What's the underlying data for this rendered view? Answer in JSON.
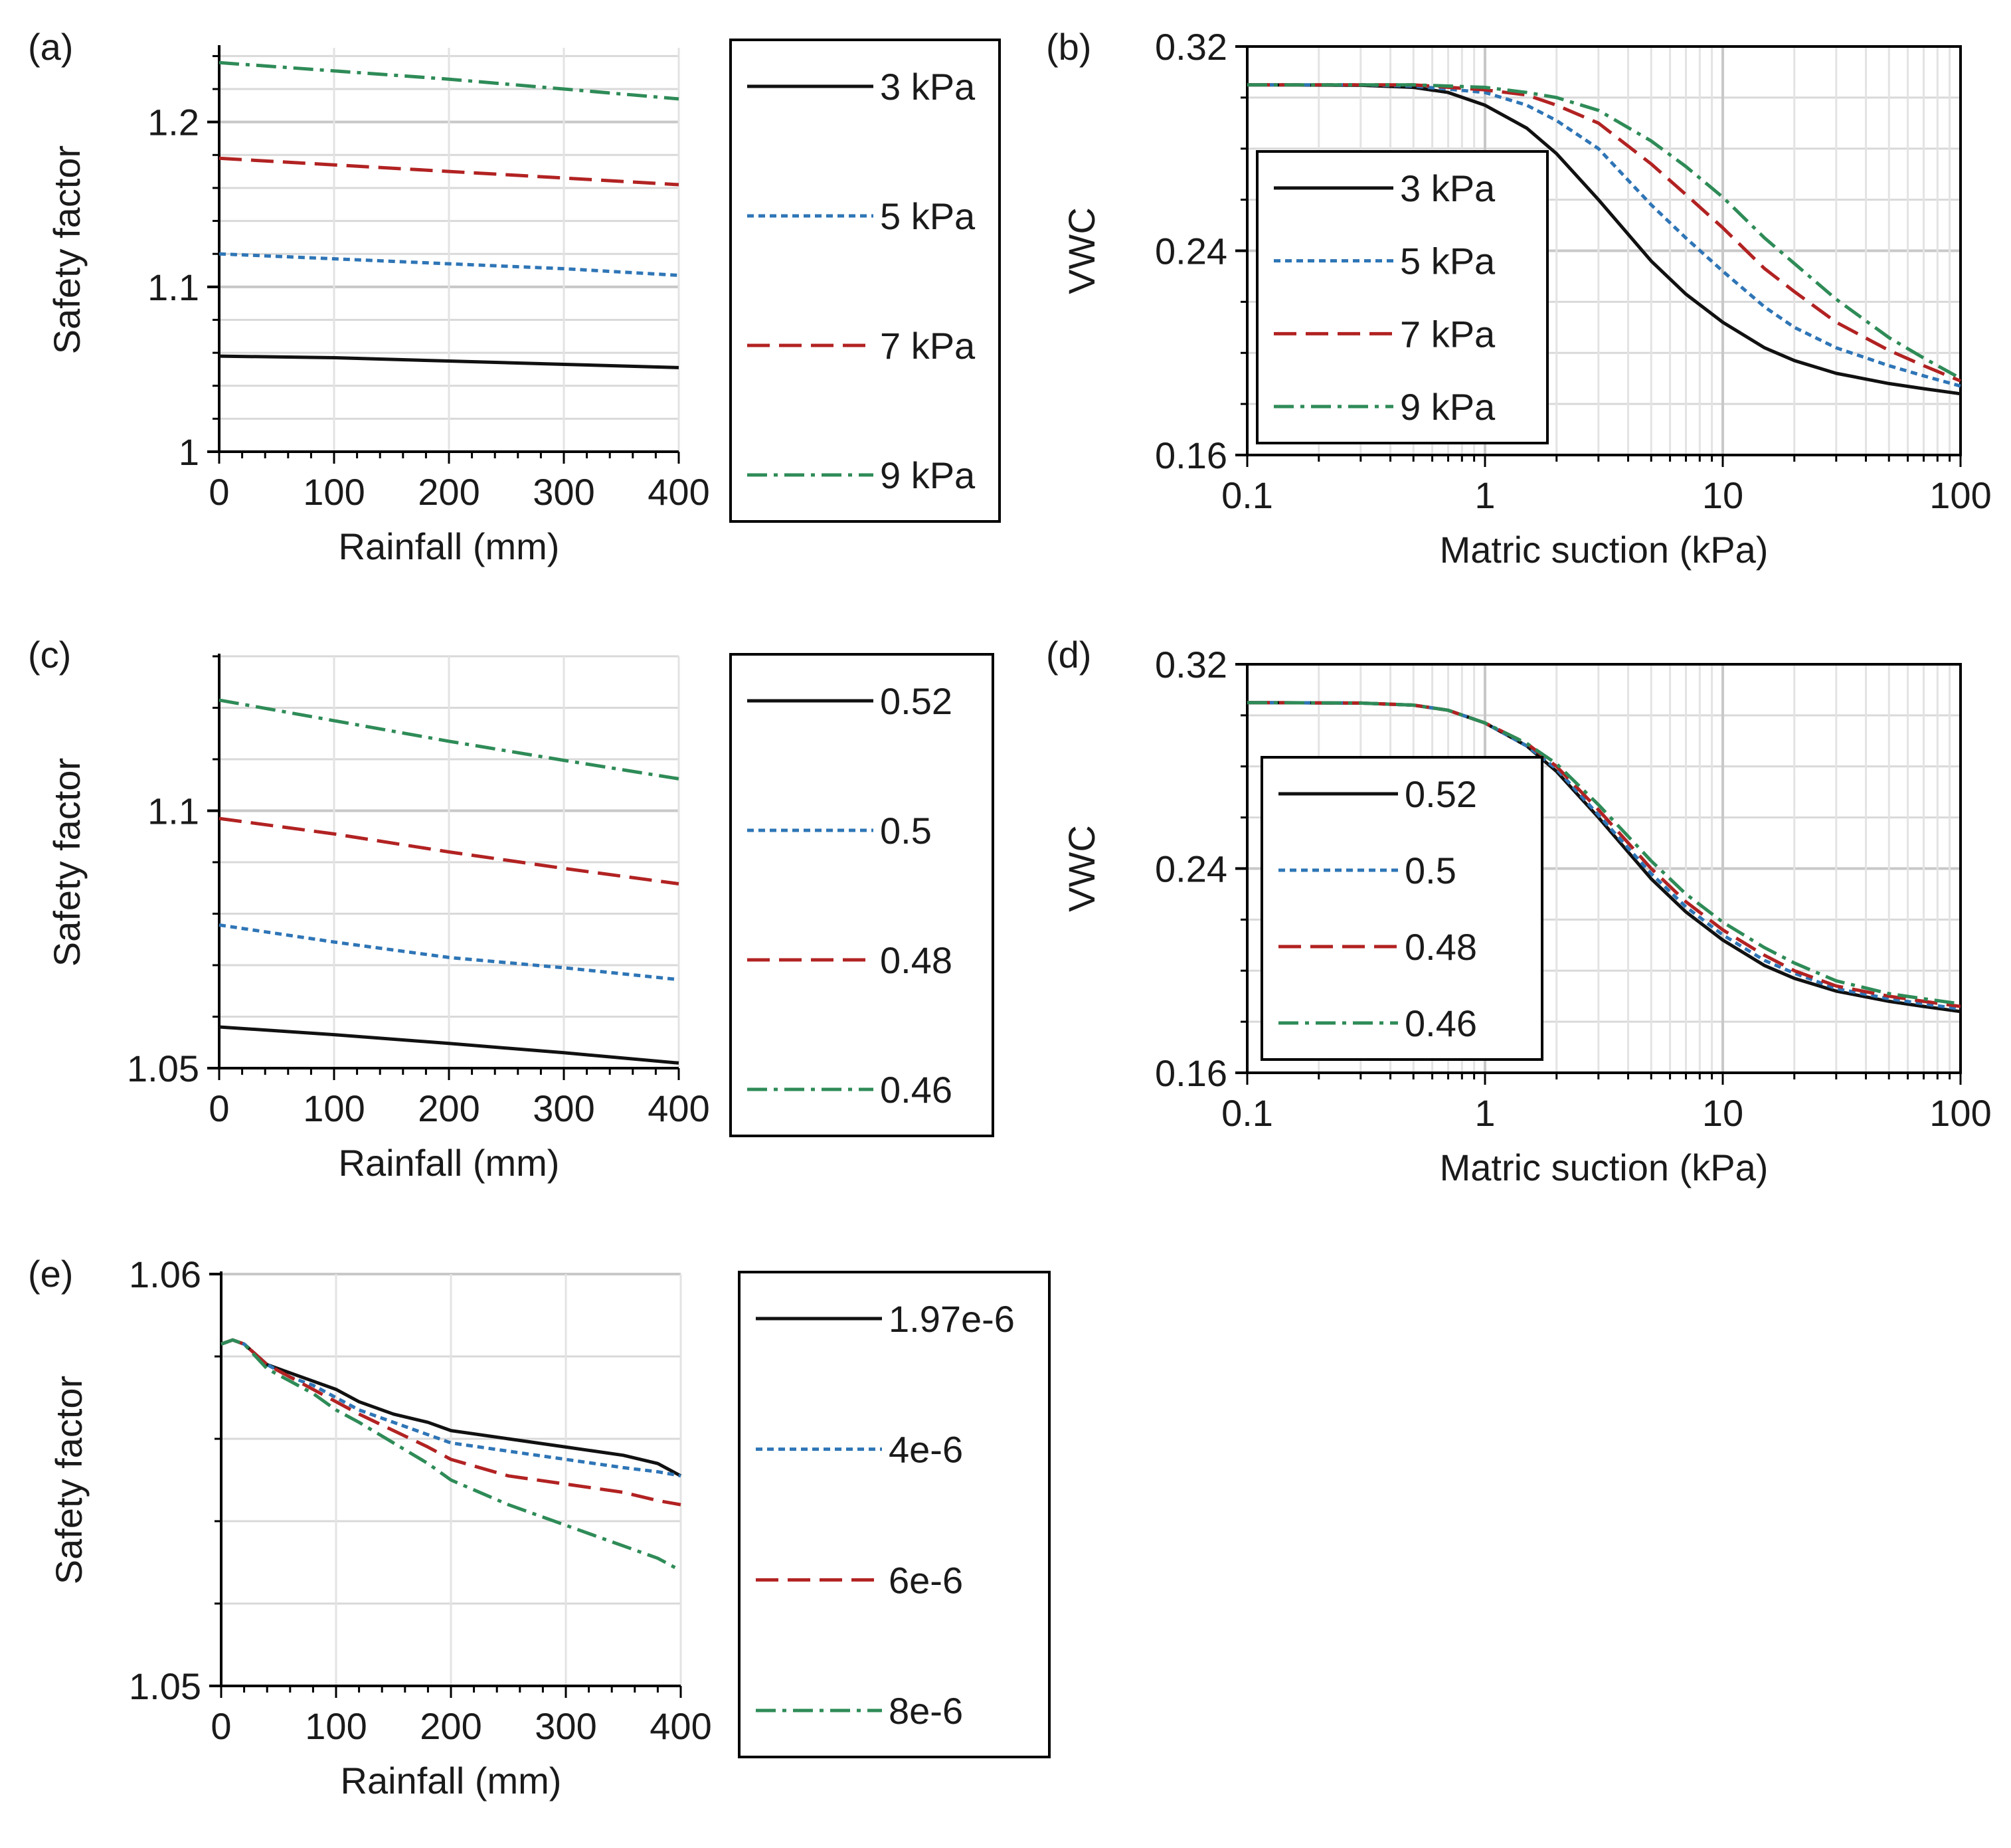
{
  "figure": {
    "colors": {
      "black": "#111111",
      "blue": "#2e75b6",
      "red": "#b22222",
      "green": "#2e8b57",
      "grid": "#d9d9d9",
      "axis": "#000000"
    }
  },
  "chart_data": [
    {
      "panel": "(a)",
      "type": "line",
      "xlabel": "Rainfall (mm)",
      "ylabel": "Safety factor",
      "xlim": [
        0,
        400
      ],
      "ylim": [
        1,
        1.245
      ],
      "xticks": [
        0,
        100,
        200,
        300,
        400
      ],
      "yticks": [
        1,
        1.1,
        1.2
      ],
      "ytick_labels": [
        "1",
        "1.1",
        "1.2"
      ],
      "y_minor_step": 0.02,
      "grid": true,
      "legend_position": "outside-right",
      "series": [
        {
          "name": "3 kPa",
          "style": "solid",
          "color": "#111111",
          "x": [
            0,
            100,
            200,
            300,
            400
          ],
          "y": [
            1.058,
            1.057,
            1.055,
            1.053,
            1.051
          ]
        },
        {
          "name": "5 kPa",
          "style": "dotted",
          "color": "#2e75b6",
          "x": [
            0,
            100,
            200,
            300,
            400
          ],
          "y": [
            1.12,
            1.117,
            1.114,
            1.111,
            1.107
          ]
        },
        {
          "name": "7 kPa",
          "style": "dashed",
          "color": "#b22222",
          "x": [
            0,
            100,
            200,
            300,
            400
          ],
          "y": [
            1.178,
            1.174,
            1.17,
            1.166,
            1.162
          ]
        },
        {
          "name": "9 kPa",
          "style": "dashdot",
          "color": "#2e8b57",
          "x": [
            0,
            100,
            200,
            300,
            400
          ],
          "y": [
            1.236,
            1.231,
            1.226,
            1.22,
            1.214
          ]
        }
      ]
    },
    {
      "panel": "(b)",
      "type": "line",
      "xlabel": "Matric suction (kPa)",
      "ylabel": "VWC",
      "xscale": "log",
      "xlim": [
        0.1,
        100
      ],
      "ylim": [
        0.16,
        0.32
      ],
      "xticks": [
        0.1,
        1,
        10,
        100
      ],
      "xtick_labels": [
        "0.1",
        "1",
        "10",
        "100"
      ],
      "yticks": [
        0.16,
        0.24,
        0.32
      ],
      "ytick_labels": [
        "0.16",
        "0.24",
        "0.32"
      ],
      "y_minor_step": 0.02,
      "grid": true,
      "legend_position": "inside-left",
      "series": [
        {
          "name": "3 kPa",
          "style": "solid",
          "color": "#111111",
          "x": [
            0.1,
            0.3,
            0.5,
            0.7,
            1,
            1.5,
            2,
            3,
            5,
            7,
            10,
            15,
            20,
            30,
            50,
            70,
            100
          ],
          "y": [
            0.305,
            0.3048,
            0.304,
            0.302,
            0.297,
            0.288,
            0.278,
            0.26,
            0.236,
            0.223,
            0.212,
            0.202,
            0.197,
            0.192,
            0.188,
            0.186,
            0.184
          ]
        },
        {
          "name": "5 kPa",
          "style": "dotted",
          "color": "#2e75b6",
          "x": [
            0.1,
            0.3,
            0.5,
            1,
            1.5,
            2,
            3,
            5,
            7,
            10,
            15,
            20,
            30,
            50,
            70,
            100
          ],
          "y": [
            0.305,
            0.305,
            0.3045,
            0.302,
            0.297,
            0.291,
            0.28,
            0.258,
            0.245,
            0.232,
            0.218,
            0.21,
            0.202,
            0.195,
            0.191,
            0.187
          ]
        },
        {
          "name": "7 kPa",
          "style": "dashed",
          "color": "#b22222",
          "x": [
            0.1,
            0.3,
            0.5,
            1,
            1.5,
            2,
            3,
            5,
            7,
            10,
            15,
            20,
            30,
            50,
            70,
            100
          ],
          "y": [
            0.305,
            0.305,
            0.305,
            0.303,
            0.301,
            0.297,
            0.29,
            0.274,
            0.262,
            0.249,
            0.233,
            0.224,
            0.212,
            0.201,
            0.195,
            0.189
          ]
        },
        {
          "name": "9 kPa",
          "style": "dashdot",
          "color": "#2e8b57",
          "x": [
            0.1,
            0.3,
            0.5,
            1,
            1.5,
            2,
            3,
            5,
            7,
            10,
            15,
            20,
            30,
            50,
            70,
            100
          ],
          "y": [
            0.305,
            0.305,
            0.305,
            0.304,
            0.302,
            0.3,
            0.295,
            0.283,
            0.273,
            0.261,
            0.245,
            0.235,
            0.221,
            0.206,
            0.198,
            0.19
          ]
        }
      ]
    },
    {
      "panel": "(c)",
      "type": "line",
      "xlabel": "Rainfall (mm)",
      "ylabel": "Safety factor",
      "xlim": [
        0,
        400
      ],
      "ylim": [
        1.05,
        1.13
      ],
      "xticks": [
        0,
        100,
        200,
        300,
        400
      ],
      "yticks": [
        1.05,
        1.1
      ],
      "ytick_labels": [
        "1.05",
        "1.1"
      ],
      "y_minor_step": 0.01,
      "grid": true,
      "legend_position": "outside-right",
      "series": [
        {
          "name": "0.52",
          "style": "solid",
          "color": "#111111",
          "x": [
            0,
            100,
            200,
            300,
            400
          ],
          "y": [
            1.058,
            1.0565,
            1.0548,
            1.053,
            1.051
          ]
        },
        {
          "name": "0.5",
          "style": "dotted",
          "color": "#2e75b6",
          "x": [
            0,
            100,
            200,
            300,
            400
          ],
          "y": [
            1.0778,
            1.0745,
            1.0715,
            1.0695,
            1.0672
          ]
        },
        {
          "name": "0.48",
          "style": "dashed",
          "color": "#b22222",
          "x": [
            0,
            100,
            200,
            300,
            400
          ],
          "y": [
            1.0985,
            1.0955,
            1.092,
            1.0888,
            1.0858
          ]
        },
        {
          "name": "0.46",
          "style": "dashdot",
          "color": "#2e8b57",
          "x": [
            0,
            100,
            200,
            300,
            400
          ],
          "y": [
            1.1215,
            1.1175,
            1.1135,
            1.1098,
            1.1062
          ]
        }
      ]
    },
    {
      "panel": "(d)",
      "type": "line",
      "xlabel": "Matric suction (kPa)",
      "ylabel": "VWC",
      "xscale": "log",
      "xlim": [
        0.1,
        100
      ],
      "ylim": [
        0.16,
        0.32
      ],
      "xticks": [
        0.1,
        1,
        10,
        100
      ],
      "xtick_labels": [
        "0.1",
        "1",
        "10",
        "100"
      ],
      "yticks": [
        0.16,
        0.24,
        0.32
      ],
      "ytick_labels": [
        "0.16",
        "0.24",
        "0.32"
      ],
      "y_minor_step": 0.02,
      "grid": true,
      "legend_position": "inside-left",
      "series": [
        {
          "name": "0.52",
          "style": "solid",
          "color": "#111111",
          "x": [
            0.1,
            0.3,
            0.5,
            0.7,
            1,
            1.5,
            2,
            3,
            5,
            7,
            10,
            15,
            20,
            30,
            50,
            70,
            100
          ],
          "y": [
            0.305,
            0.3048,
            0.304,
            0.302,
            0.297,
            0.288,
            0.278,
            0.26,
            0.236,
            0.223,
            0.212,
            0.202,
            0.197,
            0.192,
            0.188,
            0.186,
            0.184
          ]
        },
        {
          "name": "0.5",
          "style": "dotted",
          "color": "#2e75b6",
          "x": [
            0.1,
            0.3,
            0.5,
            0.7,
            1,
            1.5,
            2,
            3,
            5,
            7,
            10,
            15,
            20,
            30,
            50,
            70,
            100
          ],
          "y": [
            0.305,
            0.3048,
            0.304,
            0.302,
            0.297,
            0.288,
            0.279,
            0.261,
            0.238,
            0.225,
            0.214,
            0.204,
            0.199,
            0.193,
            0.189,
            0.187,
            0.185
          ]
        },
        {
          "name": "0.48",
          "style": "dashed",
          "color": "#b22222",
          "x": [
            0.1,
            0.3,
            0.5,
            0.7,
            1,
            1.5,
            2,
            3,
            5,
            7,
            10,
            15,
            20,
            30,
            50,
            70,
            100
          ],
          "y": [
            0.305,
            0.3048,
            0.304,
            0.302,
            0.297,
            0.289,
            0.28,
            0.263,
            0.24,
            0.227,
            0.216,
            0.206,
            0.2,
            0.194,
            0.19,
            0.188,
            0.186
          ]
        },
        {
          "name": "0.46",
          "style": "dashdot",
          "color": "#2e8b57",
          "x": [
            0.1,
            0.3,
            0.5,
            0.7,
            1,
            1.5,
            2,
            3,
            5,
            7,
            10,
            15,
            20,
            30,
            50,
            70,
            100
          ],
          "y": [
            0.305,
            0.3048,
            0.304,
            0.302,
            0.297,
            0.289,
            0.281,
            0.265,
            0.243,
            0.23,
            0.219,
            0.209,
            0.203,
            0.196,
            0.191,
            0.189,
            0.187
          ]
        }
      ]
    },
    {
      "panel": "(e)",
      "type": "line",
      "xlabel": "Rainfall (mm)",
      "ylabel": "Safety factor",
      "xlim": [
        0,
        400
      ],
      "ylim": [
        1.05,
        1.06
      ],
      "xticks": [
        0,
        100,
        200,
        300,
        400
      ],
      "yticks": [
        1.05,
        1.06
      ],
      "ytick_labels": [
        "1.05",
        "1.06"
      ],
      "y_minor_step": 0.002,
      "grid": true,
      "legend_position": "outside-right",
      "series": [
        {
          "name": "1.97e-6",
          "style": "solid",
          "color": "#111111",
          "x": [
            0,
            10,
            20,
            40,
            60,
            80,
            100,
            120,
            150,
            180,
            200,
            250,
            300,
            350,
            380,
            400
          ],
          "y": [
            1.0583,
            1.0584,
            1.0583,
            1.0578,
            1.0576,
            1.0574,
            1.0572,
            1.0569,
            1.0566,
            1.0564,
            1.0562,
            1.056,
            1.0558,
            1.0556,
            1.0554,
            1.0551
          ]
        },
        {
          "name": "4e-6",
          "style": "dotted",
          "color": "#2e75b6",
          "x": [
            0,
            10,
            20,
            40,
            60,
            80,
            100,
            120,
            150,
            180,
            200,
            250,
            300,
            350,
            380,
            400
          ],
          "y": [
            1.0583,
            1.0584,
            1.0583,
            1.0578,
            1.0575,
            1.0573,
            1.057,
            1.0567,
            1.0564,
            1.0561,
            1.0559,
            1.0557,
            1.0555,
            1.0553,
            1.0552,
            1.0551
          ]
        },
        {
          "name": "6e-6",
          "style": "dashed",
          "color": "#b22222",
          "x": [
            0,
            10,
            20,
            40,
            60,
            80,
            100,
            120,
            150,
            180,
            200,
            250,
            300,
            350,
            380,
            400
          ],
          "y": [
            1.0583,
            1.0584,
            1.0583,
            1.0578,
            1.0575,
            1.0572,
            1.0569,
            1.0566,
            1.0562,
            1.0558,
            1.0555,
            1.0551,
            1.0549,
            1.0547,
            1.0545,
            1.0544
          ]
        },
        {
          "name": "8e-6",
          "style": "dashdot",
          "color": "#2e8b57",
          "x": [
            0,
            10,
            20,
            40,
            60,
            80,
            100,
            120,
            150,
            180,
            200,
            250,
            300,
            350,
            380,
            400
          ],
          "y": [
            1.0583,
            1.0584,
            1.0583,
            1.0577,
            1.0574,
            1.0571,
            1.0567,
            1.0564,
            1.0559,
            1.0554,
            1.055,
            1.0544,
            1.0539,
            1.0534,
            1.0531,
            1.0528
          ]
        }
      ]
    }
  ]
}
